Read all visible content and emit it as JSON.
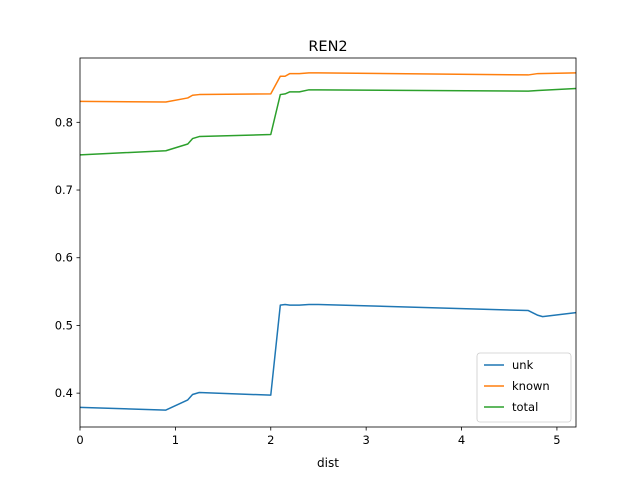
{
  "chart_data": {
    "type": "line",
    "title": "REN2",
    "xlabel": "dist",
    "ylabel": "",
    "xlim": [
      0,
      5.2
    ],
    "ylim": [
      0.35,
      0.895
    ],
    "xticks": [
      0,
      1,
      2,
      3,
      4,
      5
    ],
    "xtick_labels": [
      "0",
      "1",
      "2",
      "3",
      "4",
      "5"
    ],
    "yticks": [
      0.4,
      0.5,
      0.6,
      0.7,
      0.8
    ],
    "ytick_labels": [
      "0.4",
      "0.5",
      "0.6",
      "0.7",
      "0.8"
    ],
    "grid": false,
    "legend_position": "lower right",
    "series": [
      {
        "name": "unk",
        "color": "#1f77b4",
        "x": [
          0,
          0.9,
          1.13,
          1.18,
          1.25,
          2.0,
          2.1,
          2.15,
          2.2,
          2.3,
          2.4,
          2.5,
          4.7,
          4.8,
          4.85,
          5.2
        ],
        "y": [
          0.379,
          0.375,
          0.39,
          0.398,
          0.401,
          0.397,
          0.53,
          0.531,
          0.53,
          0.53,
          0.531,
          0.531,
          0.522,
          0.515,
          0.513,
          0.519
        ]
      },
      {
        "name": "known",
        "color": "#ff7f0e",
        "x": [
          0,
          0.9,
          1.13,
          1.18,
          1.25,
          2.0,
          2.1,
          2.15,
          2.2,
          2.3,
          2.4,
          2.5,
          4.7,
          4.8,
          5.2
        ],
        "y": [
          0.831,
          0.83,
          0.836,
          0.84,
          0.841,
          0.842,
          0.868,
          0.868,
          0.872,
          0.872,
          0.873,
          0.873,
          0.87,
          0.872,
          0.873
        ]
      },
      {
        "name": "total",
        "color": "#2ca02c",
        "x": [
          0,
          0.9,
          1.13,
          1.18,
          1.25,
          2.0,
          2.1,
          2.15,
          2.2,
          2.3,
          2.4,
          2.5,
          4.7,
          4.8,
          5.2
        ],
        "y": [
          0.752,
          0.758,
          0.768,
          0.776,
          0.779,
          0.782,
          0.841,
          0.842,
          0.845,
          0.845,
          0.848,
          0.848,
          0.846,
          0.847,
          0.85
        ]
      }
    ]
  }
}
